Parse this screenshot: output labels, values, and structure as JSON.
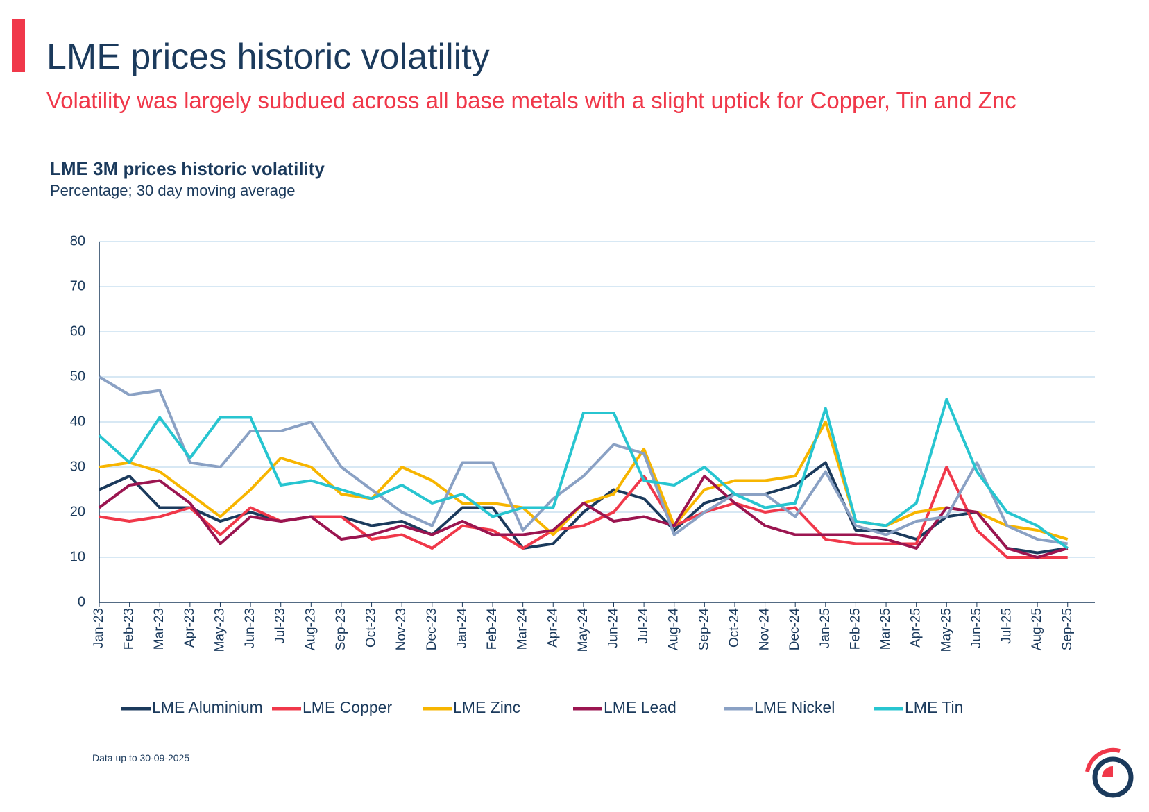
{
  "title": "LME prices historic volatility",
  "subtitle": "Volatility was largely subdued across all base metals with a slight uptick for Copper, Tin and Znc",
  "footnote": "Data up to 30-09-2025",
  "chart_data": {
    "type": "line",
    "title": "LME 3M prices historic volatility",
    "subtitle": "Percentage; 30 day moving average",
    "categories": [
      "Jan-23",
      "Feb-23",
      "Mar-23",
      "Apr-23",
      "May-23",
      "Jun-23",
      "Jul-23",
      "Aug-23",
      "Sep-23",
      "Oct-23",
      "Nov-23",
      "Dec-23",
      "Jan-24",
      "Feb-24",
      "Mar-24",
      "Apr-24",
      "May-24",
      "Jun-24",
      "Jul-24",
      "Aug-24",
      "Sep-24",
      "Oct-24",
      "Nov-24",
      "Dec-24",
      "Jan-25",
      "Feb-25",
      "Mar-25",
      "Apr-25",
      "May-25",
      "Jun-25",
      "Jul-25",
      "Aug-25",
      "Sep-25"
    ],
    "ylim": [
      0,
      80
    ],
    "yticks": [
      0,
      10,
      20,
      30,
      40,
      50,
      60,
      70,
      80
    ],
    "grid": true,
    "legend": "bottom",
    "series": [
      {
        "name": "LME Aluminium",
        "color": "#1b3a5c",
        "values": [
          25,
          28,
          21,
          21,
          18,
          20,
          18,
          19,
          19,
          17,
          18,
          15,
          21,
          21,
          12,
          13,
          20,
          25,
          23,
          16,
          22,
          24,
          24,
          26,
          31,
          16,
          16,
          14,
          19,
          20,
          12,
          11,
          12
        ]
      },
      {
        "name": "LME Copper",
        "color": "#f0384a",
        "values": [
          19,
          18,
          19,
          21,
          15,
          21,
          18,
          19,
          19,
          14,
          15,
          12,
          17,
          16,
          12,
          16,
          17,
          20,
          28,
          17,
          20,
          22,
          20,
          21,
          14,
          13,
          13,
          13,
          30,
          16,
          10,
          10,
          10
        ]
      },
      {
        "name": "LME Zinc",
        "color": "#f7b500",
        "values": [
          30,
          31,
          29,
          24,
          19,
          25,
          32,
          30,
          24,
          23,
          30,
          27,
          22,
          22,
          21,
          15,
          22,
          24,
          34,
          17,
          25,
          27,
          27,
          28,
          40,
          18,
          17,
          20,
          21,
          20,
          17,
          16,
          14
        ]
      },
      {
        "name": "LME Lead",
        "color": "#9b1550",
        "values": [
          21,
          26,
          27,
          22,
          13,
          19,
          18,
          19,
          14,
          15,
          17,
          15,
          18,
          15,
          15,
          16,
          22,
          18,
          19,
          17,
          28,
          22,
          17,
          15,
          15,
          15,
          14,
          12,
          21,
          20,
          12,
          10,
          12
        ]
      },
      {
        "name": "LME Nickel",
        "color": "#8aa1c4",
        "values": [
          50,
          46,
          47,
          31,
          30,
          38,
          38,
          40,
          30,
          25,
          20,
          17,
          31,
          31,
          16,
          23,
          28,
          35,
          33,
          15,
          20,
          24,
          24,
          19,
          29,
          17,
          15,
          18,
          19,
          31,
          17,
          14,
          13
        ]
      },
      {
        "name": "LME Tin",
        "color": "#27c5d0",
        "values": [
          37,
          31,
          41,
          32,
          41,
          41,
          26,
          27,
          25,
          23,
          26,
          22,
          24,
          19,
          21,
          21,
          42,
          42,
          27,
          26,
          30,
          24,
          21,
          22,
          43,
          18,
          17,
          22,
          45,
          29,
          20,
          17,
          12
        ]
      }
    ]
  }
}
